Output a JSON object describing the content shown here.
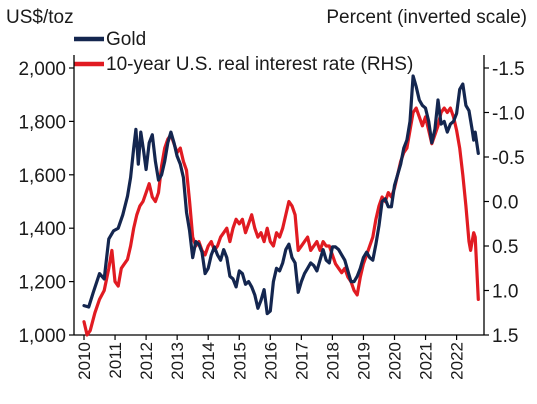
{
  "chart_data": {
    "type": "line",
    "left_axis_label": "US$/toz",
    "right_axis_label": "Percent (inverted scale)",
    "left_ylim": [
      1000,
      2000
    ],
    "right_ylim": [
      1.5,
      -1.5
    ],
    "right_inverted": true,
    "left_ticks": [
      "1,000",
      "1,200",
      "1,400",
      "1,600",
      "1,800",
      "2,000"
    ],
    "right_ticks": [
      "1.5",
      "1.0",
      "0.5",
      "0.0",
      "-0.5",
      "-1.0",
      "-1.5"
    ],
    "x_ticks": [
      "2010",
      "2011",
      "2012",
      "2013",
      "2014",
      "2015",
      "2016",
      "2017",
      "2018",
      "2019",
      "2020",
      "2021",
      "2022"
    ],
    "grid": false,
    "legend_position": "top-left",
    "series": [
      {
        "name": "Gold",
        "axis": "left",
        "color": "#14264f",
        "points": [
          [
            2010.0,
            1110
          ],
          [
            2010.15,
            1105
          ],
          [
            2010.3,
            1160
          ],
          [
            2010.5,
            1230
          ],
          [
            2010.65,
            1210
          ],
          [
            2010.8,
            1360
          ],
          [
            2010.95,
            1390
          ],
          [
            2011.1,
            1400
          ],
          [
            2011.25,
            1450
          ],
          [
            2011.4,
            1520
          ],
          [
            2011.5,
            1590
          ],
          [
            2011.6,
            1700
          ],
          [
            2011.67,
            1770
          ],
          [
            2011.75,
            1640
          ],
          [
            2011.83,
            1760
          ],
          [
            2011.92,
            1690
          ],
          [
            2012.0,
            1620
          ],
          [
            2012.1,
            1720
          ],
          [
            2012.2,
            1750
          ],
          [
            2012.3,
            1650
          ],
          [
            2012.4,
            1580
          ],
          [
            2012.5,
            1600
          ],
          [
            2012.6,
            1650
          ],
          [
            2012.7,
            1720
          ],
          [
            2012.8,
            1760
          ],
          [
            2012.9,
            1720
          ],
          [
            2013.0,
            1670
          ],
          [
            2013.1,
            1640
          ],
          [
            2013.2,
            1590
          ],
          [
            2013.3,
            1460
          ],
          [
            2013.4,
            1390
          ],
          [
            2013.5,
            1290
          ],
          [
            2013.6,
            1350
          ],
          [
            2013.7,
            1340
          ],
          [
            2013.8,
            1310
          ],
          [
            2013.9,
            1230
          ],
          [
            2014.0,
            1250
          ],
          [
            2014.1,
            1300
          ],
          [
            2014.2,
            1330
          ],
          [
            2014.3,
            1300
          ],
          [
            2014.4,
            1280
          ],
          [
            2014.5,
            1320
          ],
          [
            2014.6,
            1290
          ],
          [
            2014.7,
            1220
          ],
          [
            2014.8,
            1210
          ],
          [
            2014.9,
            1180
          ],
          [
            2015.0,
            1240
          ],
          [
            2015.1,
            1230
          ],
          [
            2015.2,
            1190
          ],
          [
            2015.3,
            1200
          ],
          [
            2015.4,
            1180
          ],
          [
            2015.5,
            1150
          ],
          [
            2015.6,
            1100
          ],
          [
            2015.7,
            1130
          ],
          [
            2015.8,
            1170
          ],
          [
            2015.9,
            1080
          ],
          [
            2016.0,
            1090
          ],
          [
            2016.1,
            1200
          ],
          [
            2016.2,
            1250
          ],
          [
            2016.3,
            1240
          ],
          [
            2016.4,
            1270
          ],
          [
            2016.5,
            1320
          ],
          [
            2016.6,
            1340
          ],
          [
            2016.7,
            1290
          ],
          [
            2016.8,
            1270
          ],
          [
            2016.9,
            1160
          ],
          [
            2017.0,
            1200
          ],
          [
            2017.1,
            1230
          ],
          [
            2017.2,
            1250
          ],
          [
            2017.3,
            1270
          ],
          [
            2017.4,
            1260
          ],
          [
            2017.5,
            1240
          ],
          [
            2017.6,
            1280
          ],
          [
            2017.7,
            1320
          ],
          [
            2017.8,
            1280
          ],
          [
            2017.9,
            1270
          ],
          [
            2018.0,
            1330
          ],
          [
            2018.1,
            1330
          ],
          [
            2018.2,
            1320
          ],
          [
            2018.3,
            1300
          ],
          [
            2018.4,
            1280
          ],
          [
            2018.5,
            1240
          ],
          [
            2018.6,
            1200
          ],
          [
            2018.7,
            1200
          ],
          [
            2018.8,
            1220
          ],
          [
            2018.9,
            1250
          ],
          [
            2019.0,
            1290
          ],
          [
            2019.1,
            1310
          ],
          [
            2019.2,
            1290
          ],
          [
            2019.3,
            1280
          ],
          [
            2019.4,
            1340
          ],
          [
            2019.5,
            1410
          ],
          [
            2019.6,
            1500
          ],
          [
            2019.7,
            1510
          ],
          [
            2019.8,
            1480
          ],
          [
            2019.9,
            1480
          ],
          [
            2020.0,
            1560
          ],
          [
            2020.1,
            1600
          ],
          [
            2020.2,
            1640
          ],
          [
            2020.3,
            1700
          ],
          [
            2020.4,
            1730
          ],
          [
            2020.5,
            1800
          ],
          [
            2020.6,
            1970
          ],
          [
            2020.7,
            1930
          ],
          [
            2020.8,
            1880
          ],
          [
            2020.9,
            1860
          ],
          [
            2021.0,
            1850
          ],
          [
            2021.1,
            1800
          ],
          [
            2021.2,
            1720
          ],
          [
            2021.3,
            1770
          ],
          [
            2021.4,
            1880
          ],
          [
            2021.5,
            1790
          ],
          [
            2021.6,
            1800
          ],
          [
            2021.7,
            1760
          ],
          [
            2021.8,
            1790
          ],
          [
            2021.9,
            1800
          ],
          [
            2022.0,
            1830
          ],
          [
            2022.1,
            1920
          ],
          [
            2022.2,
            1940
          ],
          [
            2022.3,
            1860
          ],
          [
            2022.4,
            1840
          ],
          [
            2022.5,
            1770
          ],
          [
            2022.55,
            1730
          ],
          [
            2022.6,
            1760
          ],
          [
            2022.7,
            1680
          ]
        ]
      },
      {
        "name": "10-year U.S. real interest rate (RHS)",
        "axis": "right",
        "color": "#e11b22",
        "points": [
          [
            2010.0,
            1.35
          ],
          [
            2010.1,
            1.5
          ],
          [
            2010.2,
            1.45
          ],
          [
            2010.35,
            1.25
          ],
          [
            2010.5,
            1.1
          ],
          [
            2010.65,
            1.0
          ],
          [
            2010.8,
            0.75
          ],
          [
            2010.9,
            0.55
          ],
          [
            2011.0,
            0.9
          ],
          [
            2011.1,
            0.95
          ],
          [
            2011.2,
            0.75
          ],
          [
            2011.3,
            0.7
          ],
          [
            2011.4,
            0.65
          ],
          [
            2011.5,
            0.5
          ],
          [
            2011.6,
            0.3
          ],
          [
            2011.7,
            0.15
          ],
          [
            2011.8,
            0.05
          ],
          [
            2011.9,
            0.0
          ],
          [
            2012.0,
            -0.1
          ],
          [
            2012.1,
            -0.2
          ],
          [
            2012.2,
            -0.05
          ],
          [
            2012.3,
            0.0
          ],
          [
            2012.4,
            -0.1
          ],
          [
            2012.5,
            -0.4
          ],
          [
            2012.6,
            -0.6
          ],
          [
            2012.7,
            -0.7
          ],
          [
            2012.8,
            -0.75
          ],
          [
            2012.9,
            -0.65
          ],
          [
            2013.0,
            -0.55
          ],
          [
            2013.1,
            -0.6
          ],
          [
            2013.2,
            -0.45
          ],
          [
            2013.3,
            -0.35
          ],
          [
            2013.4,
            0.0
          ],
          [
            2013.5,
            0.4
          ],
          [
            2013.6,
            0.5
          ],
          [
            2013.7,
            0.45
          ],
          [
            2013.8,
            0.55
          ],
          [
            2013.9,
            0.6
          ],
          [
            2014.0,
            0.5
          ],
          [
            2014.1,
            0.45
          ],
          [
            2014.2,
            0.55
          ],
          [
            2014.3,
            0.5
          ],
          [
            2014.4,
            0.4
          ],
          [
            2014.5,
            0.35
          ],
          [
            2014.6,
            0.3
          ],
          [
            2014.7,
            0.45
          ],
          [
            2014.8,
            0.3
          ],
          [
            2014.9,
            0.2
          ],
          [
            2015.0,
            0.25
          ],
          [
            2015.1,
            0.2
          ],
          [
            2015.2,
            0.35
          ],
          [
            2015.3,
            0.25
          ],
          [
            2015.4,
            0.15
          ],
          [
            2015.5,
            0.3
          ],
          [
            2015.6,
            0.4
          ],
          [
            2015.7,
            0.35
          ],
          [
            2015.8,
            0.45
          ],
          [
            2015.9,
            0.3
          ],
          [
            2016.0,
            0.45
          ],
          [
            2016.1,
            0.5
          ],
          [
            2016.2,
            0.35
          ],
          [
            2016.3,
            0.4
          ],
          [
            2016.4,
            0.3
          ],
          [
            2016.5,
            0.15
          ],
          [
            2016.6,
            0.0
          ],
          [
            2016.7,
            0.05
          ],
          [
            2016.8,
            0.15
          ],
          [
            2016.9,
            0.55
          ],
          [
            2017.0,
            0.5
          ],
          [
            2017.1,
            0.45
          ],
          [
            2017.2,
            0.4
          ],
          [
            2017.3,
            0.55
          ],
          [
            2017.4,
            0.5
          ],
          [
            2017.5,
            0.45
          ],
          [
            2017.6,
            0.55
          ],
          [
            2017.7,
            0.45
          ],
          [
            2017.8,
            0.5
          ],
          [
            2017.9,
            0.5
          ],
          [
            2018.0,
            0.6
          ],
          [
            2018.1,
            0.7
          ],
          [
            2018.2,
            0.75
          ],
          [
            2018.3,
            0.8
          ],
          [
            2018.4,
            0.75
          ],
          [
            2018.5,
            0.85
          ],
          [
            2018.6,
            0.9
          ],
          [
            2018.7,
            1.0
          ],
          [
            2018.8,
            1.05
          ],
          [
            2018.9,
            0.85
          ],
          [
            2019.0,
            0.7
          ],
          [
            2019.1,
            0.6
          ],
          [
            2019.2,
            0.5
          ],
          [
            2019.3,
            0.4
          ],
          [
            2019.4,
            0.2
          ],
          [
            2019.5,
            0.05
          ],
          [
            2019.6,
            -0.05
          ],
          [
            2019.7,
            0.0
          ],
          [
            2019.8,
            -0.1
          ],
          [
            2019.9,
            -0.05
          ],
          [
            2020.0,
            -0.15
          ],
          [
            2020.1,
            -0.3
          ],
          [
            2020.2,
            -0.45
          ],
          [
            2020.3,
            -0.55
          ],
          [
            2020.4,
            -0.6
          ],
          [
            2020.5,
            -0.8
          ],
          [
            2020.6,
            -1.0
          ],
          [
            2020.7,
            -1.05
          ],
          [
            2020.8,
            -0.95
          ],
          [
            2020.9,
            -0.85
          ],
          [
            2021.0,
            -0.95
          ],
          [
            2021.1,
            -0.8
          ],
          [
            2021.2,
            -0.65
          ],
          [
            2021.3,
            -0.75
          ],
          [
            2021.4,
            -0.85
          ],
          [
            2021.5,
            -1.0
          ],
          [
            2021.6,
            -1.05
          ],
          [
            2021.7,
            -1.0
          ],
          [
            2021.8,
            -1.05
          ],
          [
            2021.9,
            -0.95
          ],
          [
            2022.0,
            -0.8
          ],
          [
            2022.1,
            -0.6
          ],
          [
            2022.2,
            -0.3
          ],
          [
            2022.3,
            0.05
          ],
          [
            2022.4,
            0.45
          ],
          [
            2022.45,
            0.55
          ],
          [
            2022.5,
            0.45
          ],
          [
            2022.55,
            0.35
          ],
          [
            2022.6,
            0.4
          ],
          [
            2022.7,
            1.1
          ]
        ]
      }
    ]
  }
}
